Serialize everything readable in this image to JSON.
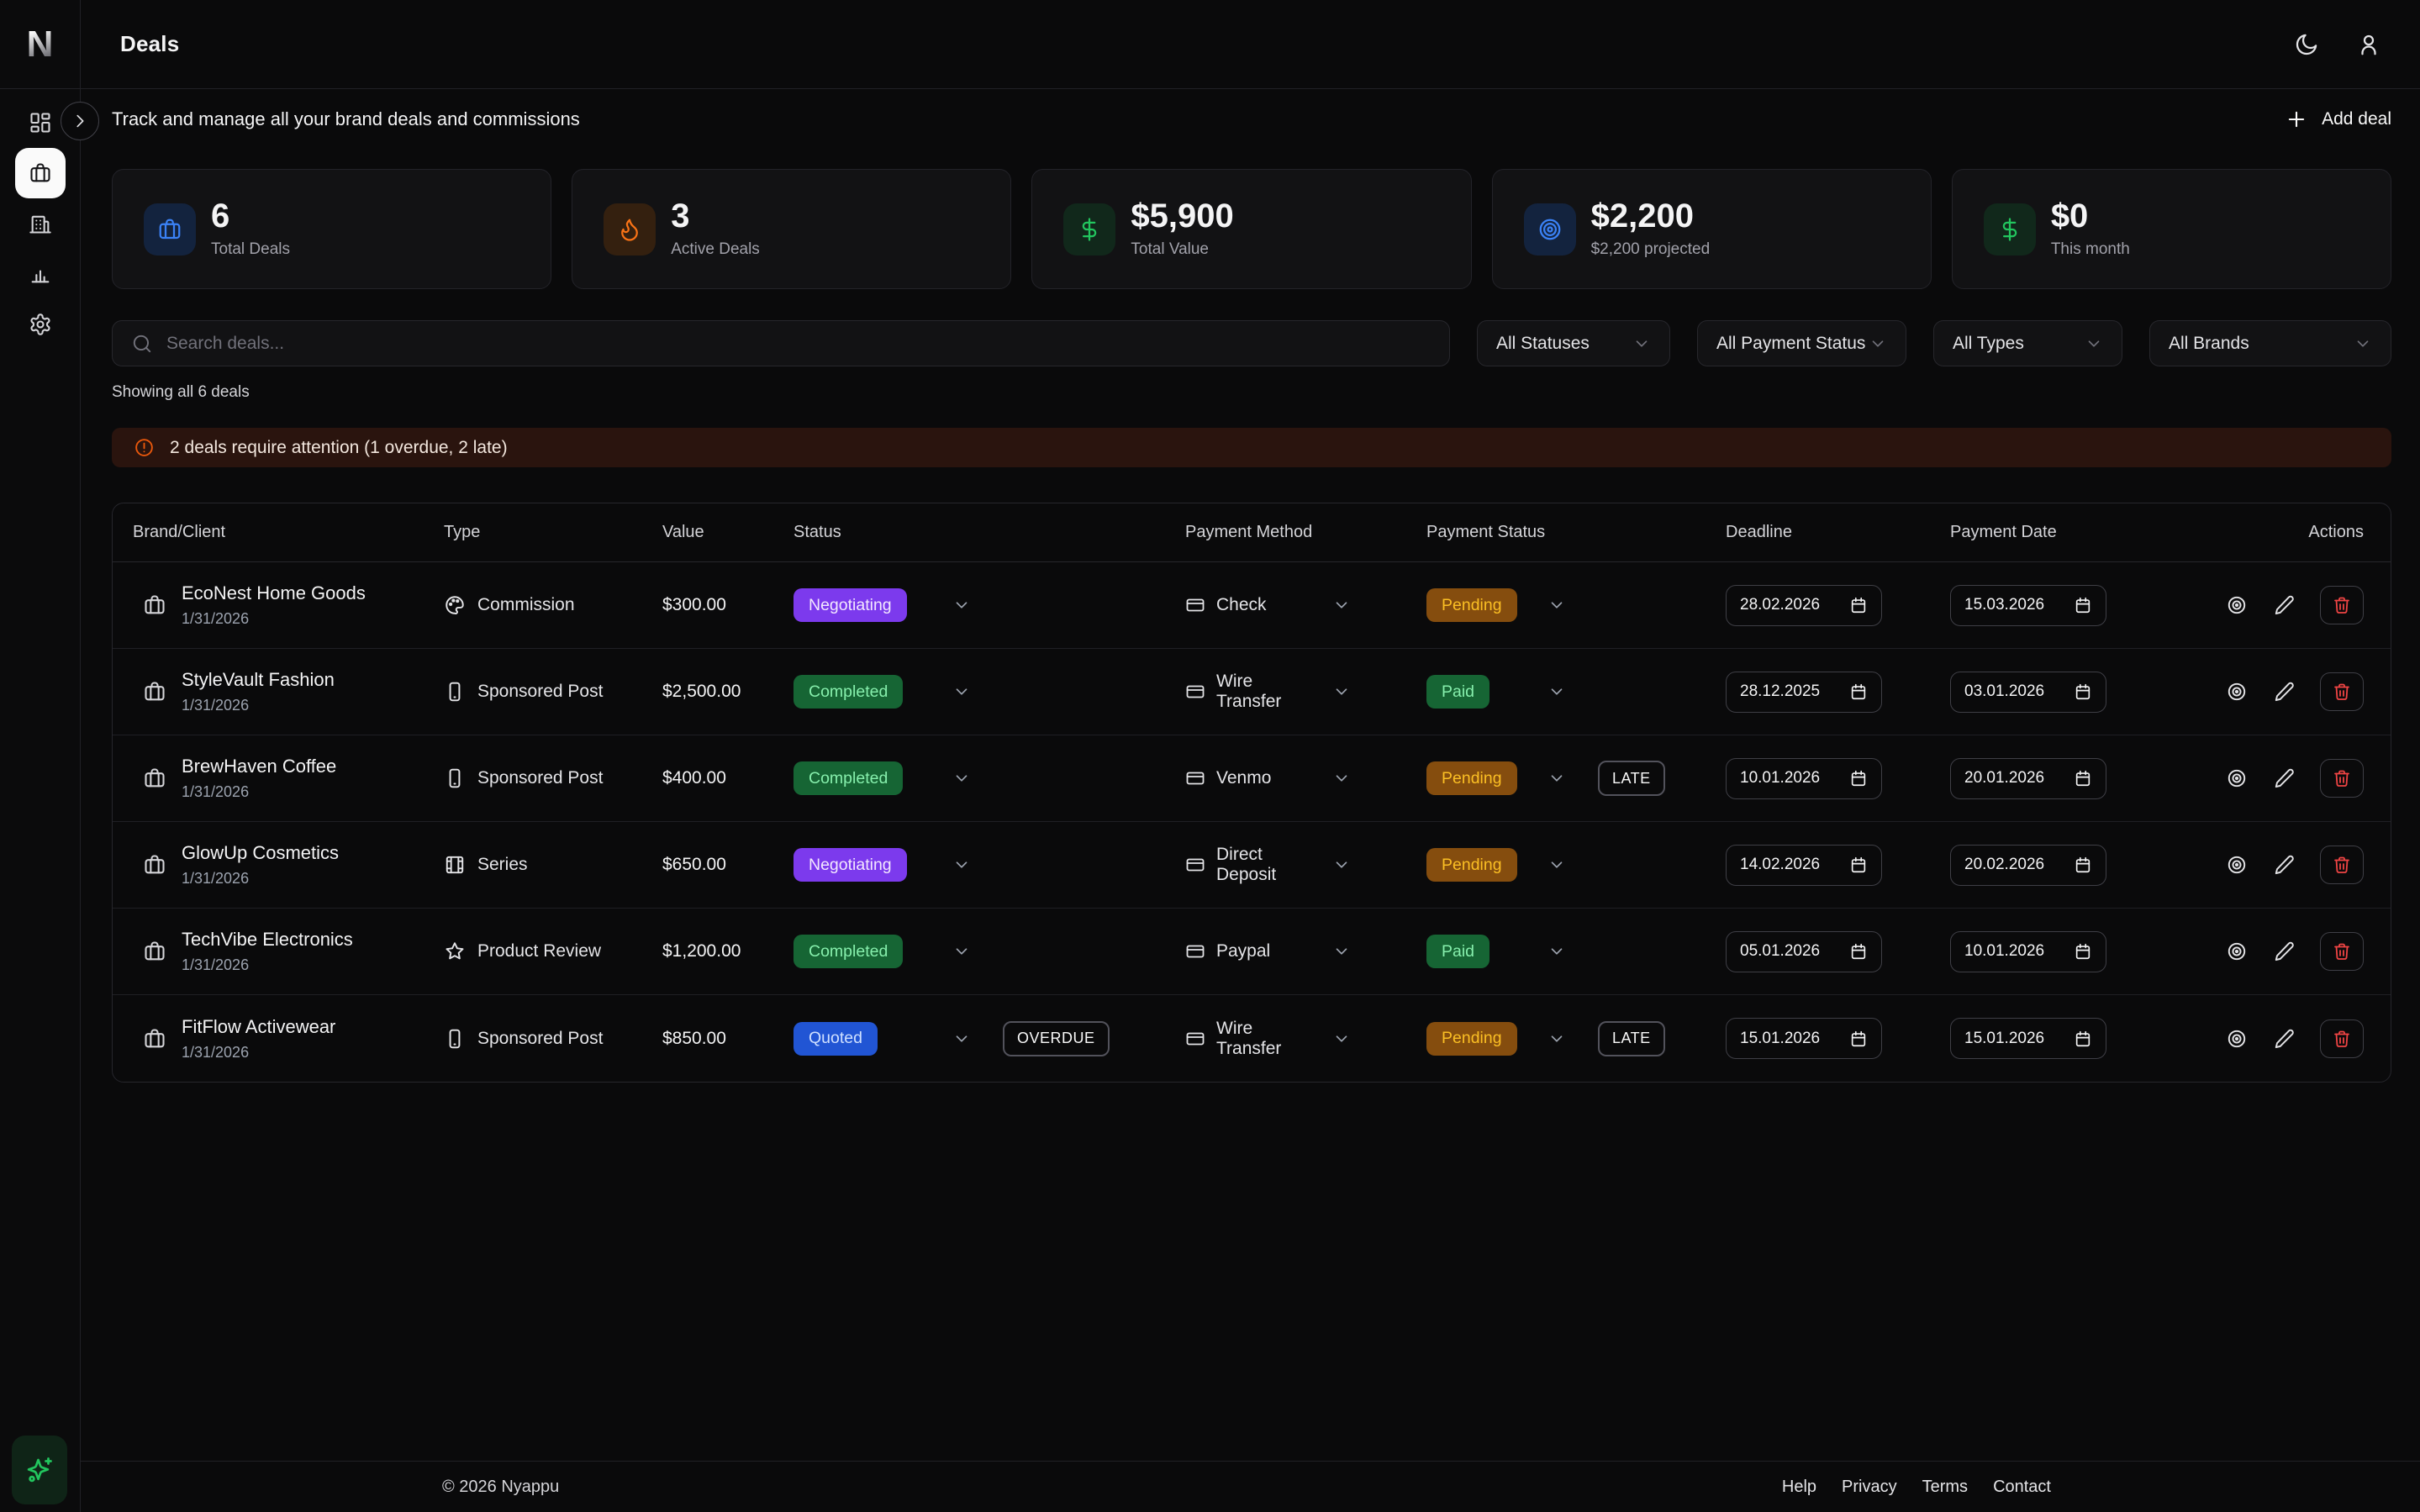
{
  "app": {
    "logo": "N",
    "title": "Deals",
    "subtitle": "Track and manage all your brand deals and commissions"
  },
  "topbar": {
    "theme_toggle_icon": "moon-icon",
    "profile_icon": "user-icon"
  },
  "sidebar": {
    "expand_icon": "chevron-right-icon",
    "assistant_icon": "sparkles-icon",
    "items": [
      {
        "icon": "dashboard-icon",
        "active": false
      },
      {
        "icon": "briefcase-icon",
        "active": true
      },
      {
        "icon": "building-icon",
        "active": false
      },
      {
        "icon": "bar-chart-icon",
        "active": false
      },
      {
        "icon": "settings-icon",
        "active": false
      }
    ]
  },
  "actions": {
    "add_deal_label": "Add deal",
    "add_deal_icon": "plus-icon"
  },
  "stats": [
    {
      "icon": "briefcase-icon",
      "accent": "#3b82f6",
      "value": "6",
      "label": "Total Deals"
    },
    {
      "icon": "flame-icon",
      "accent": "#f97316",
      "value": "3",
      "label": "Active Deals"
    },
    {
      "icon": "dollar-icon",
      "accent": "#22c55e",
      "value": "$5,900",
      "label": "Total Value"
    },
    {
      "icon": "target-icon",
      "accent": "#3b82f6",
      "value": "$2,200",
      "label": "$2,200 projected"
    },
    {
      "icon": "dollar-icon",
      "accent": "#22c55e",
      "value": "$0",
      "label": "This month"
    }
  ],
  "filters": {
    "search_placeholder": "Search deals...",
    "search_icon": "search-icon",
    "selects": [
      {
        "value": "All Statuses"
      },
      {
        "value": "All Payment Status"
      },
      {
        "value": "All Types"
      },
      {
        "value": "All Brands"
      }
    ]
  },
  "results_summary": "Showing all 6 deals",
  "alert": {
    "icon": "alert-circle-icon",
    "message": "2 deals require attention (1 overdue, 2 late)"
  },
  "table": {
    "columns": [
      "Brand/Client",
      "Type",
      "Value",
      "Status",
      "Payment Method",
      "Payment Status",
      "Deadline",
      "Payment Date",
      "Actions"
    ],
    "row_action_icons": [
      "view-icon",
      "edit-icon",
      "trash-icon"
    ],
    "date_field_icon": "calendar-icon",
    "rows": [
      {
        "brand": {
          "icon": "briefcase-icon",
          "name": "EcoNest Home Goods",
          "date": "1/31/2026"
        },
        "type": {
          "icon": "palette-icon",
          "label": "Commission"
        },
        "value": "$300.00",
        "status": {
          "label": "Negotiating",
          "variant": "negotiating",
          "flag": null
        },
        "payment_method": {
          "icon": "credit-card-icon",
          "label": "Check"
        },
        "payment_status": {
          "label": "Pending",
          "variant": "pending",
          "flag": null
        },
        "deadline": "28.02.2026",
        "payment_date": "15.03.2026"
      },
      {
        "brand": {
          "icon": "briefcase-icon",
          "name": "StyleVault Fashion",
          "date": "1/31/2026"
        },
        "type": {
          "icon": "smartphone-icon",
          "label": "Sponsored Post"
        },
        "value": "$2,500.00",
        "status": {
          "label": "Completed",
          "variant": "completed",
          "flag": null
        },
        "payment_method": {
          "icon": "credit-card-icon",
          "label": "Wire Transfer"
        },
        "payment_status": {
          "label": "Paid",
          "variant": "paid",
          "flag": null
        },
        "deadline": "28.12.2025",
        "payment_date": "03.01.2026"
      },
      {
        "brand": {
          "icon": "briefcase-icon",
          "name": "BrewHaven Coffee",
          "date": "1/31/2026"
        },
        "type": {
          "icon": "smartphone-icon",
          "label": "Sponsored Post"
        },
        "value": "$400.00",
        "status": {
          "label": "Completed",
          "variant": "completed",
          "flag": null
        },
        "payment_method": {
          "icon": "credit-card-icon",
          "label": "Venmo"
        },
        "payment_status": {
          "label": "Pending",
          "variant": "pending",
          "flag": "LATE"
        },
        "deadline": "10.01.2026",
        "payment_date": "20.01.2026"
      },
      {
        "brand": {
          "icon": "briefcase-icon",
          "name": "GlowUp Cosmetics",
          "date": "1/31/2026"
        },
        "type": {
          "icon": "film-icon",
          "label": "Series"
        },
        "value": "$650.00",
        "status": {
          "label": "Negotiating",
          "variant": "negotiating",
          "flag": null
        },
        "payment_method": {
          "icon": "credit-card-icon",
          "label": "Direct Deposit"
        },
        "payment_status": {
          "label": "Pending",
          "variant": "pending",
          "flag": null
        },
        "deadline": "14.02.2026",
        "payment_date": "20.02.2026"
      },
      {
        "brand": {
          "icon": "briefcase-icon",
          "name": "TechVibe Electronics",
          "date": "1/31/2026"
        },
        "type": {
          "icon": "star-icon",
          "label": "Product Review"
        },
        "value": "$1,200.00",
        "status": {
          "label": "Completed",
          "variant": "completed",
          "flag": null
        },
        "payment_method": {
          "icon": "credit-card-icon",
          "label": "Paypal"
        },
        "payment_status": {
          "label": "Paid",
          "variant": "paid",
          "flag": null
        },
        "deadline": "05.01.2026",
        "payment_date": "10.01.2026"
      },
      {
        "brand": {
          "icon": "briefcase-icon",
          "name": "FitFlow Activewear",
          "date": "1/31/2026"
        },
        "type": {
          "icon": "smartphone-icon",
          "label": "Sponsored Post"
        },
        "value": "$850.00",
        "status": {
          "label": "Quoted",
          "variant": "quoted",
          "flag": "OVERDUE"
        },
        "payment_method": {
          "icon": "credit-card-icon",
          "label": "Wire Transfer"
        },
        "payment_status": {
          "label": "Pending",
          "variant": "pending",
          "flag": "LATE"
        },
        "deadline": "15.01.2026",
        "payment_date": "15.01.2026"
      }
    ]
  },
  "footer": {
    "copyright": "© 2026 Nyappu",
    "links": [
      "Help",
      "Privacy",
      "Terms",
      "Contact"
    ]
  }
}
